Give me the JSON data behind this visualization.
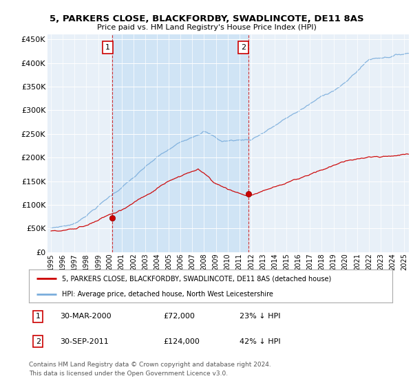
{
  "title_line1": "5, PARKERS CLOSE, BLACKFORDBY, SWADLINCOTE, DE11 8AS",
  "title_line2": "Price paid vs. HM Land Registry's House Price Index (HPI)",
  "ylim": [
    0,
    460000
  ],
  "yticks": [
    0,
    50000,
    100000,
    150000,
    200000,
    250000,
    300000,
    350000,
    400000,
    450000
  ],
  "xlim_start": 1994.7,
  "xlim_end": 2025.4,
  "transaction1_x": 2000.22,
  "transaction1_y": 72000,
  "transaction1_label": "30-MAR-2000",
  "transaction1_price": "£72,000",
  "transaction1_pct": "23% ↓ HPI",
  "transaction2_x": 2011.75,
  "transaction2_y": 124000,
  "transaction2_label": "30-SEP-2011",
  "transaction2_price": "£124,000",
  "transaction2_pct": "42% ↓ HPI",
  "line_color_price": "#cc0000",
  "line_color_hpi": "#7aaddc",
  "legend_label1": "5, PARKERS CLOSE, BLACKFORDBY, SWADLINCOTE, DE11 8AS (detached house)",
  "legend_label2": "HPI: Average price, detached house, North West Leicestershire",
  "footer1": "Contains HM Land Registry data © Crown copyright and database right 2024.",
  "footer2": "This data is licensed under the Open Government Licence v3.0.",
  "background_color": "#ffffff",
  "plot_bg_color": "#e8f0f8",
  "shade_color": "#d0e4f5"
}
